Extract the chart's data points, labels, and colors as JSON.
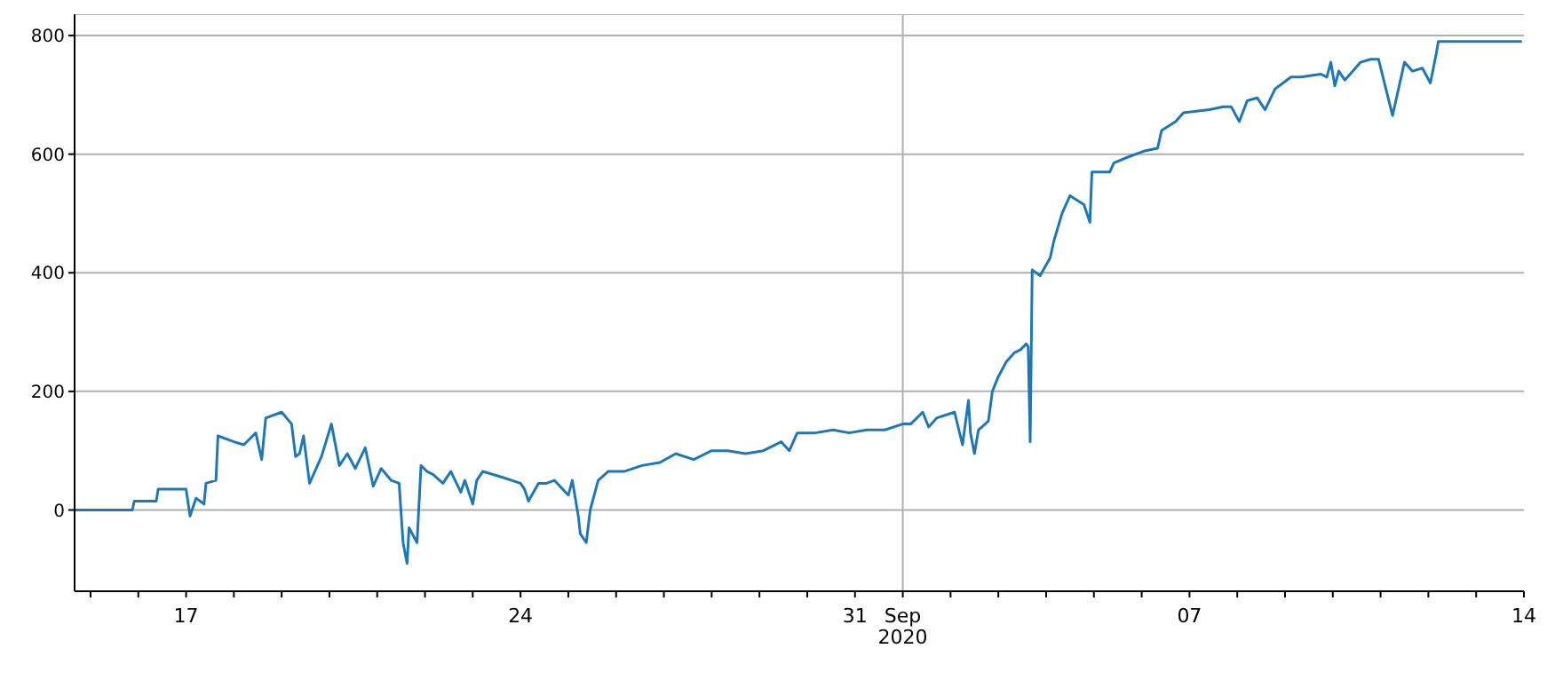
{
  "chart_data": {
    "type": "line",
    "xlim": [
      "2020-08-14T16:00",
      "2020-09-14T00:00"
    ],
    "ylim": [
      -137,
      836
    ],
    "yticks": [
      0,
      200,
      400,
      600,
      800
    ],
    "xticks": [
      {
        "value": "2020-08-15",
        "label": null
      },
      {
        "value": "2020-08-16",
        "label": null
      },
      {
        "value": "2020-08-17",
        "label": "17"
      },
      {
        "value": "2020-08-18",
        "label": null
      },
      {
        "value": "2020-08-19",
        "label": null
      },
      {
        "value": "2020-08-20",
        "label": null
      },
      {
        "value": "2020-08-21",
        "label": null
      },
      {
        "value": "2020-08-22",
        "label": null
      },
      {
        "value": "2020-08-23",
        "label": null
      },
      {
        "value": "2020-08-24",
        "label": "24"
      },
      {
        "value": "2020-08-25",
        "label": null
      },
      {
        "value": "2020-08-26",
        "label": null
      },
      {
        "value": "2020-08-27",
        "label": null
      },
      {
        "value": "2020-08-28",
        "label": null
      },
      {
        "value": "2020-08-29",
        "label": null
      },
      {
        "value": "2020-08-30",
        "label": null
      },
      {
        "value": "2020-08-31",
        "label": "31"
      },
      {
        "value": "2020-09-01",
        "label": "Sep\n2020"
      },
      {
        "value": "2020-09-02",
        "label": null
      },
      {
        "value": "2020-09-03",
        "label": null
      },
      {
        "value": "2020-09-04",
        "label": null
      },
      {
        "value": "2020-09-05",
        "label": null
      },
      {
        "value": "2020-09-06",
        "label": null
      },
      {
        "value": "2020-09-07",
        "label": "07"
      },
      {
        "value": "2020-09-08",
        "label": null
      },
      {
        "value": "2020-09-09",
        "label": null
      },
      {
        "value": "2020-09-10",
        "label": null
      },
      {
        "value": "2020-09-11",
        "label": null
      },
      {
        "value": "2020-09-12",
        "label": null
      },
      {
        "value": "2020-09-13",
        "label": null
      },
      {
        "value": "2020-09-14",
        "label": "14"
      }
    ],
    "grid": "y",
    "legend": false,
    "marker": "none",
    "line_style": "solid",
    "ref_lines": [
      {
        "axis": "x",
        "value": "2020-09-01",
        "color": "#b0b0b0"
      }
    ],
    "x": [
      "2020-08-14T16:00",
      "2020-08-15T21:00",
      "2020-08-15T22:00",
      "2020-08-16T09:00",
      "2020-08-16T10:00",
      "2020-08-17T00:00",
      "2020-08-17T02:00",
      "2020-08-17T05:00",
      "2020-08-17T09:00",
      "2020-08-17T10:00",
      "2020-08-17T15:00",
      "2020-08-17T16:00",
      "2020-08-18T00:00",
      "2020-08-18T05:00",
      "2020-08-18T11:00",
      "2020-08-18T14:00",
      "2020-08-18T16:00",
      "2020-08-19T00:00",
      "2020-08-19T05:00",
      "2020-08-19T07:00",
      "2020-08-19T09:00",
      "2020-08-19T11:00",
      "2020-08-19T14:00",
      "2020-08-19T20:00",
      "2020-08-20T01:00",
      "2020-08-20T05:00",
      "2020-08-20T09:00",
      "2020-08-20T13:00",
      "2020-08-20T18:00",
      "2020-08-20T22:00",
      "2020-08-21T02:00",
      "2020-08-21T07:00",
      "2020-08-21T11:00",
      "2020-08-21T13:00",
      "2020-08-21T15:00",
      "2020-08-21T16:00",
      "2020-08-21T20:00",
      "2020-08-21T22:00",
      "2020-08-22T01:00",
      "2020-08-22T04:00",
      "2020-08-22T09:00",
      "2020-08-22T13:00",
      "2020-08-22T18:00",
      "2020-08-22T20:00",
      "2020-08-23T00:00",
      "2020-08-23T02:00",
      "2020-08-23T05:00",
      "2020-08-23T15:00",
      "2020-08-24T00:00",
      "2020-08-24T02:00",
      "2020-08-24T04:00",
      "2020-08-24T09:00",
      "2020-08-24T13:00",
      "2020-08-24T17:00",
      "2020-08-25T00:00",
      "2020-08-25T02:00",
      "2020-08-25T05:00",
      "2020-08-25T06:00",
      "2020-08-25T09:00",
      "2020-08-25T11:00",
      "2020-08-25T15:00",
      "2020-08-25T20:00",
      "2020-08-26T04:00",
      "2020-08-26T13:00",
      "2020-08-26T22:00",
      "2020-08-27T06:00",
      "2020-08-27T15:00",
      "2020-08-28T00:00",
      "2020-08-28T08:00",
      "2020-08-28T17:00",
      "2020-08-29T02:00",
      "2020-08-29T11:00",
      "2020-08-29T15:00",
      "2020-08-29T19:00",
      "2020-08-30T04:00",
      "2020-08-30T13:00",
      "2020-08-30T21:00",
      "2020-08-31T06:00",
      "2020-08-31T15:00",
      "2020-09-01T00:00",
      "2020-09-01T04:00",
      "2020-09-01T10:00",
      "2020-09-01T13:00",
      "2020-09-01T17:00",
      "2020-09-02T02:00",
      "2020-09-02T06:00",
      "2020-09-02T09:00",
      "2020-09-02T10:00",
      "2020-09-02T12:00",
      "2020-09-02T14:00",
      "2020-09-02T19:00",
      "2020-09-02T21:00",
      "2020-09-03T00:00",
      "2020-09-03T04:00",
      "2020-09-03T08:00",
      "2020-09-03T11:00",
      "2020-09-03T14:00",
      "2020-09-03T15:00",
      "2020-09-03T16:00",
      "2020-09-03T17:00",
      "2020-09-03T21:00",
      "2020-09-04T02:00",
      "2020-09-04T04:00",
      "2020-09-04T08:00",
      "2020-09-04T12:00",
      "2020-09-04T19:00",
      "2020-09-04T22:00",
      "2020-09-04T23:00",
      "2020-09-05T08:00",
      "2020-09-05T10:00",
      "2020-09-05T17:00",
      "2020-09-06T01:00",
      "2020-09-06T08:00",
      "2020-09-06T10:00",
      "2020-09-06T17:00",
      "2020-09-06T21:00",
      "2020-09-07T10:00",
      "2020-09-07T17:00",
      "2020-09-07T21:00",
      "2020-09-08T01:00",
      "2020-09-08T05:00",
      "2020-09-08T10:00",
      "2020-09-08T14:00",
      "2020-09-08T19:00",
      "2020-09-08T23:00",
      "2020-09-09T03:00",
      "2020-09-09T08:00",
      "2020-09-09T18:00",
      "2020-09-09T21:00",
      "2020-09-09T23:00",
      "2020-09-10T01:00",
      "2020-09-10T03:00",
      "2020-09-10T06:00",
      "2020-09-10T10:00",
      "2020-09-10T14:00",
      "2020-09-10T19:00",
      "2020-09-10T23:00",
      "2020-09-11T06:00",
      "2020-09-11T12:00",
      "2020-09-11T16:00",
      "2020-09-11T21:00",
      "2020-09-12T01:00",
      "2020-09-12T04:00",
      "2020-09-12T05:00",
      "2020-09-13T23:00"
    ],
    "series": [
      {
        "color": "#1f77b4",
        "values": [
          0,
          0,
          15,
          15,
          35,
          35,
          -10,
          20,
          10,
          45,
          50,
          125,
          115,
          110,
          130,
          85,
          155,
          165,
          145,
          90,
          95,
          125,
          45,
          90,
          145,
          75,
          95,
          70,
          105,
          40,
          70,
          50,
          45,
          -55,
          -90,
          -30,
          -55,
          75,
          65,
          60,
          45,
          65,
          30,
          50,
          10,
          50,
          65,
          55,
          45,
          35,
          15,
          45,
          45,
          50,
          25,
          50,
          -10,
          -40,
          -55,
          0,
          50,
          65,
          65,
          75,
          80,
          95,
          85,
          100,
          100,
          95,
          100,
          115,
          100,
          130,
          130,
          135,
          130,
          135,
          135,
          145,
          145,
          165,
          140,
          155,
          165,
          110,
          185,
          130,
          95,
          135,
          150,
          200,
          225,
          250,
          265,
          270,
          280,
          275,
          115,
          405,
          395,
          425,
          455,
          500,
          530,
          515,
          485,
          570,
          570,
          585,
          595,
          605,
          610,
          640,
          655,
          670,
          675,
          680,
          680,
          655,
          690,
          695,
          675,
          710,
          720,
          730,
          730,
          735,
          730,
          755,
          715,
          740,
          725,
          740,
          755,
          760,
          760,
          665,
          755,
          740,
          745,
          720,
          770,
          790,
          790
        ]
      }
    ]
  }
}
